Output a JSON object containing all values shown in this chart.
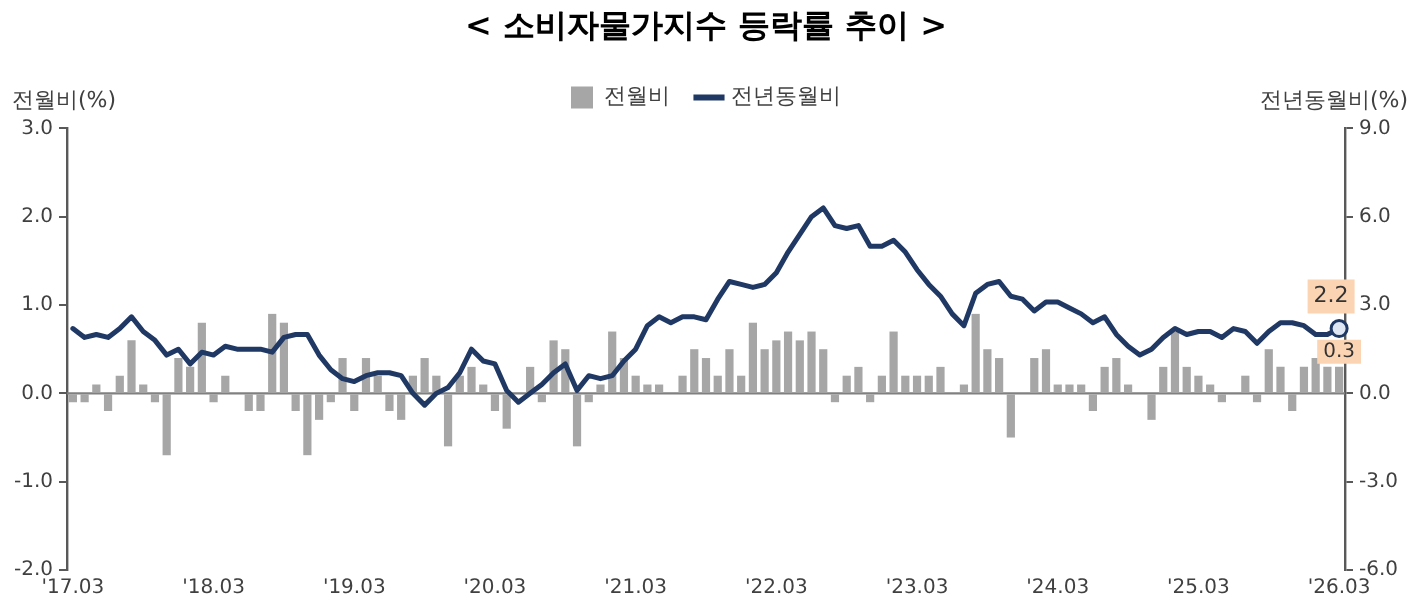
{
  "chart_data": {
    "type": "bar",
    "title": "< 소비자물가지수 등락률 추이 >",
    "ylabel": "전월비(%)",
    "y2label": "전년동월비(%)",
    "categories": [
      "'17.03",
      null,
      null,
      null,
      null,
      null,
      null,
      null,
      null,
      null,
      null,
      null,
      "'18.03",
      null,
      null,
      null,
      null,
      null,
      null,
      null,
      null,
      null,
      null,
      null,
      "'19.03",
      null,
      null,
      null,
      null,
      null,
      null,
      null,
      null,
      null,
      null,
      null,
      "'20.03",
      null,
      null,
      null,
      null,
      null,
      null,
      null,
      null,
      null,
      null,
      null,
      "'21.03",
      null,
      null,
      null,
      null,
      null,
      null,
      null,
      null,
      null,
      null,
      null,
      "'22.03",
      null,
      null,
      null,
      null,
      null,
      null,
      null,
      null,
      null,
      null,
      null,
      "'23.03",
      null,
      null,
      null,
      null,
      null,
      null,
      null,
      null,
      null,
      null,
      null,
      "'24.03",
      null,
      null,
      null,
      null,
      null,
      null,
      null,
      null,
      null,
      null,
      null,
      "'25.03",
      null,
      null,
      null,
      null,
      null,
      null,
      null,
      null,
      null,
      null,
      null,
      "'26.03"
    ],
    "series": [
      {
        "name": "전월비",
        "type": "bar",
        "color": "#a6a6a6",
        "values": [
          -0.1,
          -0.1,
          0.1,
          -0.2,
          0.2,
          0.6,
          0.1,
          -0.1,
          -0.7,
          0.4,
          0.3,
          0.8,
          -0.1,
          0.2,
          0,
          -0.2,
          -0.2,
          0.9,
          0.8,
          -0.2,
          -0.7,
          -0.3,
          -0.1,
          0.4,
          -0.2,
          0.4,
          0.2,
          -0.2,
          -0.3,
          0.2,
          0.4,
          0.2,
          -0.6,
          0.2,
          0.3,
          0.1,
          -0.2,
          -0.4,
          0,
          0.3,
          -0.1,
          0.6,
          0.5,
          -0.6,
          -0.1,
          0.1,
          0.7,
          0.4,
          0.2,
          0.1,
          0.1,
          0,
          0.2,
          0.5,
          0.4,
          0.2,
          0.5,
          0.2,
          0.8,
          0.5,
          0.6,
          0.7,
          0.6,
          0.7,
          0.5,
          -0.1,
          0.2,
          0.3,
          -0.1,
          0.2,
          0.7,
          0.2,
          0.2,
          0.2,
          0.3,
          0,
          0.1,
          0.9,
          0.5,
          0.4,
          -0.5,
          0,
          0.4,
          0.5,
          0.1,
          0.1,
          0.1,
          -0.2,
          0.3,
          0.4,
          0.1,
          0,
          -0.3,
          0.3,
          0.7,
          0.3,
          0.2,
          0.1,
          -0.1,
          0,
          0.2,
          -0.1,
          0.5,
          0.3,
          -0.2,
          0.3,
          0.4,
          0.3,
          0.3
        ],
        "value_labels": [
          null,
          null,
          null,
          null,
          null,
          null,
          null,
          null,
          null,
          null,
          null,
          null,
          null,
          null,
          null,
          null,
          null,
          null,
          null,
          null,
          null,
          null,
          null,
          null,
          null,
          null,
          null,
          null,
          null,
          null,
          null,
          null,
          null,
          null,
          null,
          null,
          null,
          null,
          null,
          null,
          null,
          null,
          null,
          null,
          null,
          null,
          null,
          null,
          null,
          null,
          null,
          null,
          null,
          null,
          null,
          null,
          null,
          null,
          null,
          null,
          null,
          null,
          null,
          null,
          null,
          null,
          null,
          null,
          null,
          null,
          null,
          null,
          null,
          null,
          null,
          null,
          null,
          null,
          null,
          null,
          null,
          null,
          null,
          null,
          null,
          null,
          null,
          null,
          null,
          null,
          null,
          null,
          null,
          null,
          null,
          null,
          null,
          null,
          null,
          null,
          null,
          null,
          null,
          null,
          null,
          null,
          null,
          null,
          "0.3"
        ]
      },
      {
        "name": "전년동월비",
        "type": "line",
        "axis": "y2",
        "color": "#1f3864",
        "values": [
          2.2,
          1.9,
          2.0,
          1.9,
          2.2,
          2.6,
          2.1,
          1.8,
          1.3,
          1.5,
          1.0,
          1.4,
          1.3,
          1.6,
          1.5,
          1.5,
          1.5,
          1.4,
          1.9,
          2.0,
          2.0,
          1.3,
          0.8,
          0.5,
          0.4,
          0.6,
          0.7,
          0.7,
          0.6,
          0.0,
          -0.4,
          0.0,
          0.2,
          0.7,
          1.5,
          1.1,
          1.0,
          0.1,
          -0.3,
          0.0,
          0.3,
          0.7,
          1.0,
          0.1,
          0.6,
          0.5,
          0.6,
          1.1,
          1.5,
          2.3,
          2.6,
          2.4,
          2.6,
          2.6,
          2.5,
          3.2,
          3.8,
          3.7,
          3.6,
          3.7,
          4.1,
          4.8,
          5.4,
          6.0,
          6.3,
          5.7,
          5.6,
          5.7,
          5.0,
          5.0,
          5.2,
          4.8,
          4.2,
          3.7,
          3.3,
          2.7,
          2.3,
          3.4,
          3.7,
          3.8,
          3.3,
          3.2,
          2.8,
          3.1,
          3.1,
          2.9,
          2.7,
          2.4,
          2.6,
          2.0,
          1.6,
          1.3,
          1.5,
          1.9,
          2.2,
          2.0,
          2.1,
          2.1,
          1.9,
          2.2,
          2.1,
          1.7,
          2.1,
          2.4,
          2.4,
          2.3,
          2.0,
          2.0,
          2.2
        ],
        "value_labels": [
          null,
          null,
          null,
          null,
          null,
          null,
          null,
          null,
          null,
          null,
          null,
          null,
          null,
          null,
          null,
          null,
          null,
          null,
          null,
          null,
          null,
          null,
          null,
          null,
          null,
          null,
          null,
          null,
          null,
          null,
          null,
          null,
          null,
          null,
          null,
          null,
          null,
          null,
          null,
          null,
          null,
          null,
          null,
          null,
          null,
          null,
          null,
          null,
          null,
          null,
          null,
          null,
          null,
          null,
          null,
          null,
          null,
          null,
          null,
          null,
          null,
          null,
          null,
          null,
          null,
          null,
          null,
          null,
          null,
          null,
          null,
          null,
          null,
          null,
          null,
          null,
          null,
          null,
          null,
          null,
          null,
          null,
          null,
          null,
          null,
          null,
          null,
          null,
          null,
          null,
          null,
          null,
          null,
          null,
          null,
          null,
          null,
          null,
          null,
          null,
          null,
          null,
          null,
          null,
          null,
          null,
          null,
          null,
          "2.2"
        ]
      }
    ],
    "ylim": [
      -2,
      3
    ],
    "yticks": [
      {
        "value": -2,
        "label": "-2.0"
      },
      {
        "value": -1,
        "label": "-1.0"
      },
      {
        "value": 0,
        "label": "0.0"
      },
      {
        "value": 1,
        "label": "1.0"
      },
      {
        "value": 2,
        "label": "2.0"
      },
      {
        "value": 3,
        "label": "3.0"
      }
    ],
    "y2lim": [
      -6,
      9
    ],
    "y2ticks": [
      {
        "value": -6,
        "label": "-6.0"
      },
      {
        "value": -3,
        "label": "-3.0"
      },
      {
        "value": 0,
        "label": "0.0"
      },
      {
        "value": 3,
        "label": "3.0"
      },
      {
        "value": 6,
        "label": "6.0"
      },
      {
        "value": 9,
        "label": "9.0"
      }
    ],
    "ref_lines": [
      {
        "axis": "y",
        "value": 0,
        "color": "#808080"
      }
    ],
    "legend": "top",
    "grid": false
  }
}
